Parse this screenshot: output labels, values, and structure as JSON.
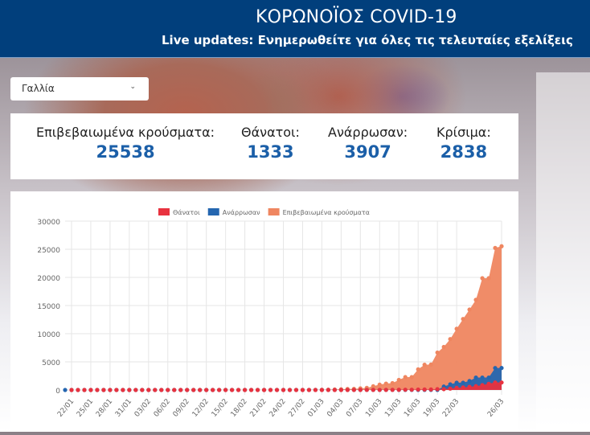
{
  "header": {
    "title": "ΚΟΡΩΝΟΪΟΣ COVID-19",
    "subtitle": "Live updates: Ενημερωθείτε για όλες τις τελευταίες εξελίξεις"
  },
  "country_select": {
    "value": "Γαλλία"
  },
  "stats": [
    {
      "label": "Επιβεβαιωμένα κρούσματα:",
      "value": "25538"
    },
    {
      "label": "Θάνατοι:",
      "value": "1333"
    },
    {
      "label": "Ανάρρωσαν:",
      "value": "3907"
    },
    {
      "label": "Κρίσιμα:",
      "value": "2838"
    }
  ],
  "colors": {
    "header": "#013f7c",
    "deaths": "#e8323f",
    "recovered": "#2466b0",
    "confirmed": "#ef8660"
  },
  "chart_data": {
    "type": "area",
    "legend_position": "top",
    "grid": true,
    "ylim": [
      0,
      30000
    ],
    "yticks": [
      0,
      5000,
      10000,
      15000,
      20000,
      25000,
      30000
    ],
    "xtick_labels": [
      "22/01",
      "25/01",
      "28/01",
      "31/01",
      "03/02",
      "06/02",
      "09/02",
      "12/02",
      "15/02",
      "18/02",
      "21/02",
      "24/02",
      "27/02",
      "01/03",
      "04/03",
      "07/03",
      "10/03",
      "13/03",
      "16/03",
      "19/03",
      "22/03",
      "26/03"
    ],
    "x_start": "22/01",
    "x_end": "26/03",
    "series": [
      {
        "name": "Θάνατοι",
        "color": "#e8323f",
        "values": [
          0,
          0,
          0,
          0,
          0,
          0,
          0,
          0,
          0,
          0,
          0,
          0,
          0,
          0,
          0,
          0,
          0,
          0,
          0,
          0,
          0,
          0,
          0,
          1,
          1,
          1,
          1,
          1,
          1,
          1,
          1,
          1,
          1,
          1,
          1,
          1,
          1,
          1,
          1,
          2,
          2,
          2,
          2,
          3,
          4,
          4,
          7,
          9,
          11,
          19,
          19,
          33,
          48,
          48,
          79,
          91,
          91,
          148,
          148,
          243,
          372,
          450,
          562,
          674,
          860,
          1100,
          1331,
          1333
        ]
      },
      {
        "name": "Ανάρρωσαν",
        "color": "#2466b0",
        "values": [
          0,
          0,
          0,
          0,
          0,
          0,
          0,
          0,
          0,
          0,
          0,
          0,
          0,
          0,
          0,
          0,
          0,
          0,
          0,
          0,
          0,
          0,
          0,
          0,
          4,
          4,
          4,
          4,
          4,
          4,
          4,
          4,
          4,
          4,
          4,
          4,
          4,
          4,
          12,
          12,
          12,
          12,
          12,
          12,
          12,
          12,
          12,
          12,
          12,
          12,
          12,
          12,
          12,
          12,
          12,
          12,
          12,
          12,
          12,
          602,
          1000,
          1295,
          1297,
          1600,
          2200,
          2207,
          2206,
          3900,
          3907
        ]
      },
      {
        "name": "Επιβεβαιωμένα κρούσματα",
        "color": "#ef8660",
        "values": [
          0,
          0,
          3,
          3,
          3,
          3,
          4,
          5,
          5,
          5,
          6,
          6,
          6,
          6,
          6,
          6,
          6,
          6,
          11,
          11,
          11,
          11,
          11,
          11,
          11,
          11,
          11,
          12,
          12,
          12,
          12,
          12,
          12,
          12,
          12,
          12,
          12,
          12,
          18,
          38,
          57,
          100,
          130,
          191,
          204,
          288,
          380,
          656,
          957,
          1134,
          1217,
          1792,
          2289,
          2289,
          3672,
          4480,
          4513,
          6650,
          7652,
          9043,
          10871,
          12612,
          14282,
          16018,
          19856,
          19856,
          25233,
          25538
        ]
      }
    ]
  }
}
